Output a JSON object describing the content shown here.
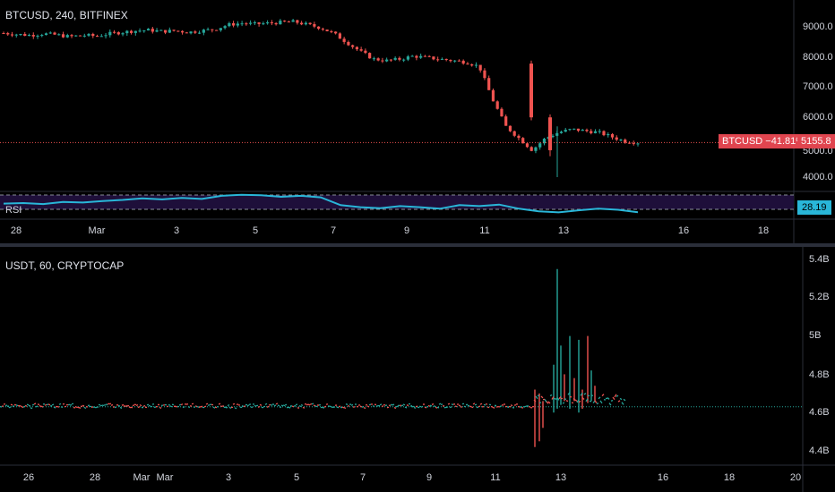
{
  "colors": {
    "background": "#000000",
    "up": "#26a69a",
    "down": "#ef5350",
    "price_line": "#ef5350",
    "rsi_line": "#29b6d8",
    "usdt_line_up": "#26a69a",
    "usdt_line_down": "#ef5350",
    "grid": "#2a2e39"
  },
  "top_chart": {
    "title": "BTCUSD, 240, BITFINEX",
    "price_axis": [
      "9000.0",
      "8000.0",
      "7000.0",
      "6000.0",
      "5000.0",
      "4000.0"
    ],
    "last_price_label": "BTCUSD −41.81%",
    "last_price_value": "5155.8",
    "rsi_label": "RSI",
    "rsi_value": "28.19",
    "date_axis": [
      "28",
      "Mar",
      "3",
      "5",
      "7",
      "9",
      "11",
      "13",
      "16",
      "18"
    ]
  },
  "bottom_chart": {
    "title": "USDT, 60, CRYPTOCAP",
    "value_axis": [
      "5.4B",
      "5.2B",
      "5B",
      "4.8B",
      "4.6B",
      "4.4B"
    ],
    "date_axis": [
      "26",
      "28",
      "Mar",
      "Mar",
      "3",
      "5",
      "7",
      "9",
      "11",
      "13",
      "16",
      "18",
      "20"
    ]
  },
  "chart_data": [
    {
      "type": "candlestick",
      "title": "BTCUSD, 240, BITFINEX",
      "ylim": [
        3600,
        9600
      ],
      "y_ticks": [
        4000,
        5000,
        6000,
        7000,
        8000,
        9000
      ],
      "last_value": 5155.8,
      "change_pct": -41.81,
      "x_ticks": [
        "28",
        "Mar",
        "3",
        "5",
        "7",
        "9",
        "11",
        "13",
        "16",
        "18"
      ],
      "close_path": [
        8820,
        8780,
        8750,
        8800,
        8760,
        8700,
        8750,
        8720,
        8800,
        8850,
        8900,
        8920,
        8880,
        8900,
        8850,
        8900,
        8950,
        9100,
        9150,
        9120,
        9150,
        9180,
        9200,
        9100,
        9000,
        8800,
        8500,
        8200,
        7950,
        7900,
        7950,
        8050,
        8000,
        7950,
        7900,
        7850,
        7700,
        6600,
        5700,
        5300,
        4900,
        5300,
        5500,
        5600,
        5550,
        5500,
        5350,
        5200,
        5155.8
      ]
    },
    {
      "type": "line",
      "title": "RSI",
      "last_value": 28.19,
      "values": [
        45,
        46,
        44,
        48,
        47,
        50,
        52,
        55,
        53,
        56,
        54,
        60,
        62,
        61,
        58,
        60,
        57,
        42,
        38,
        36,
        40,
        38,
        35,
        42,
        40,
        43,
        35,
        30,
        28,
        32,
        35,
        33,
        28.19
      ]
    },
    {
      "type": "line",
      "title": "USDT, 60, CRYPTOCAP",
      "ylim": [
        4.35,
        5.45
      ],
      "y_ticks": [
        4.4,
        4.6,
        4.8,
        5.0,
        5.2,
        5.4
      ],
      "y_unit": "B",
      "x_ticks": [
        "26",
        "28",
        "Mar",
        "Mar",
        "3",
        "5",
        "7",
        "9",
        "11",
        "13",
        "16",
        "18",
        "20"
      ],
      "baseline": 4.63,
      "spikes": [
        4.42,
        4.8,
        5.35,
        4.95,
        5.0,
        4.75,
        4.68,
        4.66
      ]
    }
  ]
}
